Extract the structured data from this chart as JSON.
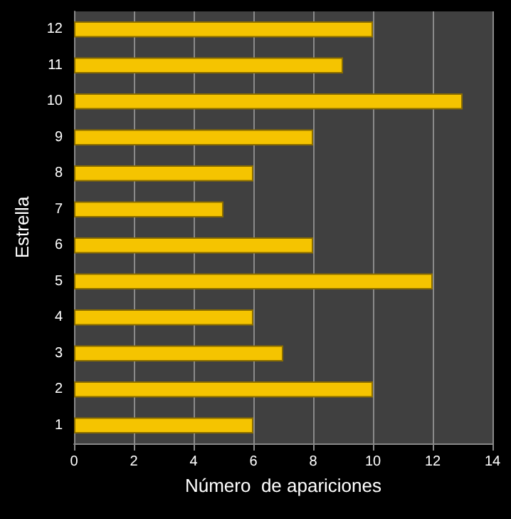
{
  "chart_data": {
    "type": "bar",
    "orientation": "horizontal",
    "xlabel": "Número  de apariciones",
    "ylabel": "Estrella",
    "categories": [
      "12",
      "11",
      "10",
      "9",
      "8",
      "7",
      "6",
      "5",
      "4",
      "3",
      "2",
      "1"
    ],
    "values": [
      10,
      9,
      13,
      8,
      6,
      5,
      8,
      12,
      6,
      7,
      10,
      6
    ],
    "color": "#f5c400",
    "xlim": [
      0,
      14
    ],
    "xticks": [
      0,
      2,
      4,
      6,
      8,
      10,
      12,
      14
    ],
    "grid": "x"
  }
}
